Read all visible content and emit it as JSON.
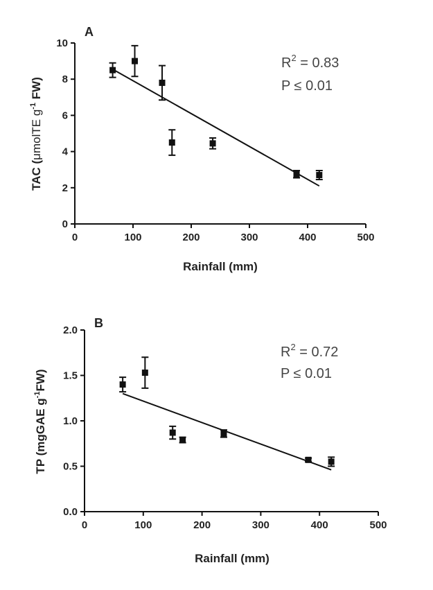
{
  "chart_data": [
    {
      "type": "scatter",
      "panel_label": "A",
      "xlabel": "Rainfall (mm)",
      "ylabel_main": "TAC (",
      "ylabel_mu": "μ",
      "ylabel_mid": "molTE g",
      "ylabel_sup": "-1",
      "ylabel_end": " FW)",
      "xlim": [
        0,
        500
      ],
      "ylim": [
        0,
        10
      ],
      "xticks": [
        0,
        100,
        200,
        300,
        400,
        500
      ],
      "yticks": [
        0,
        2,
        4,
        6,
        8,
        10
      ],
      "xtick_labels": [
        "0",
        "100",
        "200",
        "300",
        "400",
        "500"
      ],
      "ytick_labels": [
        "0",
        "2",
        "4",
        "6",
        "8",
        "10"
      ],
      "points": [
        {
          "x": 65,
          "y": 8.5,
          "err": 0.4
        },
        {
          "x": 103,
          "y": 9.0,
          "err": 0.85
        },
        {
          "x": 150,
          "y": 7.8,
          "err": 0.95
        },
        {
          "x": 167,
          "y": 4.5,
          "err": 0.7
        },
        {
          "x": 237,
          "y": 4.45,
          "err": 0.3
        },
        {
          "x": 381,
          "y": 2.75,
          "err": 0.2
        },
        {
          "x": 420,
          "y": 2.7,
          "err": 0.25
        }
      ],
      "fit": {
        "x0": 65,
        "y0": 8.55,
        "x1": 420,
        "y1": 2.1
      },
      "r2_prefix": "R",
      "r2_sup": "2",
      "r2_value": " = 0.83",
      "p_text": "P ≤ 0.01"
    },
    {
      "type": "scatter",
      "panel_label": "B",
      "xlabel": "Rainfall (mm)",
      "ylabel_main": "TP (mgGAE g",
      "ylabel_sup": "-1",
      "ylabel_end": "FW)",
      "xlim": [
        0,
        500
      ],
      "ylim": [
        0,
        2.0
      ],
      "xticks": [
        0,
        100,
        200,
        300,
        400,
        500
      ],
      "yticks": [
        0,
        0.5,
        1.0,
        1.5,
        2.0
      ],
      "xtick_labels": [
        "0",
        "100",
        "200",
        "300",
        "400",
        "500"
      ],
      "ytick_labels": [
        "0.0",
        "0.5",
        "1.0",
        "1.5",
        "2.0"
      ],
      "points": [
        {
          "x": 65,
          "y": 1.4,
          "err": 0.08
        },
        {
          "x": 103,
          "y": 1.53,
          "err": 0.17
        },
        {
          "x": 150,
          "y": 0.87,
          "err": 0.07
        },
        {
          "x": 167,
          "y": 0.79,
          "err": 0.03
        },
        {
          "x": 237,
          "y": 0.86,
          "err": 0.04
        },
        {
          "x": 381,
          "y": 0.57,
          "err": 0.02
        },
        {
          "x": 420,
          "y": 0.55,
          "err": 0.05
        }
      ],
      "fit": {
        "x0": 65,
        "y0": 1.3,
        "x1": 420,
        "y1": 0.46
      },
      "r2_prefix": "R",
      "r2_sup": "2",
      "r2_value": " = 0.72",
      "p_text": "P ≤ 0.01"
    }
  ]
}
